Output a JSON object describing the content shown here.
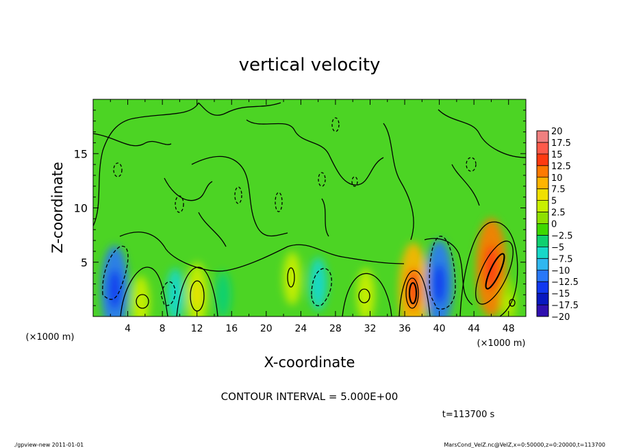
{
  "chart_data": {
    "type": "heatmap",
    "title": "vertical velocity",
    "xlabel": "X-coordinate",
    "ylabel": "Z-coordinate",
    "x_unit_label": "(×1000 m)",
    "y_unit_label": "(×1000 m)",
    "xlim": [
      0,
      50
    ],
    "ylim": [
      0,
      20
    ],
    "x_ticks": [
      4,
      8,
      12,
      16,
      20,
      24,
      28,
      32,
      36,
      40,
      44,
      48
    ],
    "y_ticks": [
      5,
      10,
      15
    ],
    "contour_interval_text": "CONTOUR INTERVAL = 5.000E+00",
    "time_text": "t=113700 s",
    "colorbar": {
      "levels": [
        "20",
        "17.5",
        "15",
        "12.5",
        "10",
        "7.5",
        "5",
        "2.5",
        "0",
        "−2.5",
        "−5",
        "−7.5",
        "−10",
        "−12.5",
        "−15",
        "−17.5",
        "−20"
      ],
      "colors": [
        "#f08080",
        "#ff5a4a",
        "#ff3a10",
        "#ff7a00",
        "#ffb400",
        "#f0e000",
        "#c8f000",
        "#8ee000",
        "#3ed800",
        "#10d070",
        "#18d8c8",
        "#30b8f0",
        "#2878f8",
        "#1038f0",
        "#0818c0",
        "#3010b0",
        "#7010c0"
      ]
    },
    "extrema": [
      {
        "x": 2.5,
        "z": 2.5,
        "value": -10
      },
      {
        "x": 5.5,
        "z": 1.3,
        "value": 4
      },
      {
        "x": 9.5,
        "z": 2.0,
        "value": -4
      },
      {
        "x": 12,
        "z": 2.0,
        "value": 6
      },
      {
        "x": 15,
        "z": 2.0,
        "value": -3
      },
      {
        "x": 23,
        "z": 3.5,
        "value": 4
      },
      {
        "x": 26,
        "z": 3.0,
        "value": -4
      },
      {
        "x": 31.5,
        "z": 2.0,
        "value": 4
      },
      {
        "x": 37,
        "z": 2.5,
        "value": 11
      },
      {
        "x": 40,
        "z": 3.0,
        "value": -10
      },
      {
        "x": 46,
        "z": 4.5,
        "value": 12
      },
      {
        "x": 48,
        "z": 1.2,
        "value": 3
      }
    ]
  },
  "footer": {
    "left": "./gpview-new  2011-01-01",
    "right": "MarsCond_VelZ.nc@VelZ,x=0:50000,z=0:20000,t=113700"
  }
}
